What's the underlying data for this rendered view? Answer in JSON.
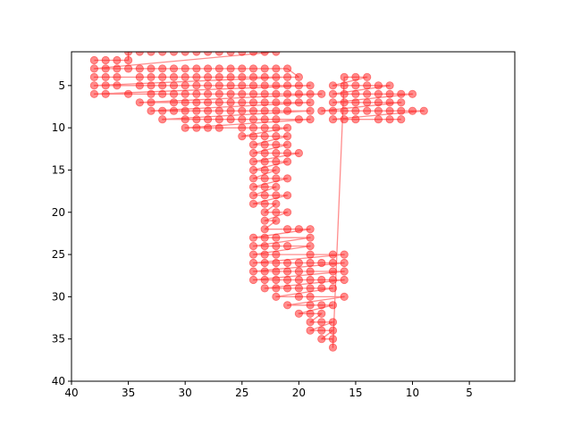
{
  "chart_data": {
    "type": "scatter",
    "title": "",
    "xlabel": "",
    "ylabel": "",
    "xlim": [
      40,
      1
    ],
    "ylim": [
      40,
      1
    ],
    "x_inverted": true,
    "y_inverted": true,
    "x_ticks": [
      40,
      35,
      30,
      25,
      20,
      15,
      10,
      5
    ],
    "x_tick_labels": [
      "40",
      "35",
      "30",
      "25",
      "20",
      "15",
      "10",
      "5"
    ],
    "y_ticks": [
      5,
      10,
      15,
      20,
      25,
      30,
      35,
      40
    ],
    "y_tick_labels": [
      "5",
      "10",
      "15",
      "20",
      "25",
      "30",
      "35",
      "40"
    ],
    "grid": false,
    "series": [
      {
        "color": "#ff0000",
        "marker": "o",
        "alpha": 0.45,
        "connected": true,
        "points": [
          [
            38,
            2
          ],
          [
            37,
            2
          ],
          [
            36,
            2
          ],
          [
            35,
            2
          ],
          [
            35,
            1
          ],
          [
            34,
            1
          ],
          [
            33,
            1
          ],
          [
            32,
            1
          ],
          [
            31,
            1
          ],
          [
            30,
            1
          ],
          [
            29,
            1
          ],
          [
            28,
            1
          ],
          [
            27,
            1
          ],
          [
            26,
            1
          ],
          [
            25,
            1
          ],
          [
            24,
            1
          ],
          [
            23,
            1
          ],
          [
            22,
            1
          ],
          [
            38,
            3
          ],
          [
            37,
            3
          ],
          [
            36,
            3
          ],
          [
            35,
            3
          ],
          [
            34,
            3
          ],
          [
            33,
            3
          ],
          [
            32,
            3
          ],
          [
            31,
            3
          ],
          [
            30,
            3
          ],
          [
            29,
            3
          ],
          [
            28,
            3
          ],
          [
            27,
            3
          ],
          [
            26,
            3
          ],
          [
            25,
            3
          ],
          [
            24,
            3
          ],
          [
            23,
            3
          ],
          [
            22,
            3
          ],
          [
            21,
            3
          ],
          [
            20,
            4
          ],
          [
            38,
            4
          ],
          [
            37,
            4
          ],
          [
            36,
            4
          ],
          [
            34,
            4
          ],
          [
            33,
            4
          ],
          [
            32,
            4
          ],
          [
            31,
            4
          ],
          [
            30,
            4
          ],
          [
            29,
            4
          ],
          [
            28,
            4
          ],
          [
            27,
            4
          ],
          [
            26,
            4
          ],
          [
            25,
            4
          ],
          [
            24,
            4
          ],
          [
            23,
            4
          ],
          [
            22,
            4
          ],
          [
            21,
            4
          ],
          [
            38,
            5
          ],
          [
            37,
            5
          ],
          [
            36,
            5
          ],
          [
            34,
            5
          ],
          [
            33,
            5
          ],
          [
            32,
            5
          ],
          [
            31,
            5
          ],
          [
            30,
            5
          ],
          [
            29,
            5
          ],
          [
            28,
            5
          ],
          [
            27,
            5
          ],
          [
            26,
            5
          ],
          [
            25,
            5
          ],
          [
            24,
            5
          ],
          [
            23,
            5
          ],
          [
            22,
            5
          ],
          [
            21,
            5
          ],
          [
            20,
            5
          ],
          [
            19,
            5
          ],
          [
            38,
            6
          ],
          [
            37,
            6
          ],
          [
            35,
            6
          ],
          [
            33,
            6
          ],
          [
            32,
            6
          ],
          [
            31,
            6
          ],
          [
            30,
            6
          ],
          [
            29,
            6
          ],
          [
            28,
            6
          ],
          [
            27,
            6
          ],
          [
            26,
            6
          ],
          [
            25,
            6
          ],
          [
            24,
            6
          ],
          [
            23,
            6
          ],
          [
            22,
            6
          ],
          [
            21,
            6
          ],
          [
            20,
            6
          ],
          [
            19,
            6
          ],
          [
            18,
            6
          ],
          [
            34,
            7
          ],
          [
            33,
            7
          ],
          [
            31,
            7
          ],
          [
            30,
            7
          ],
          [
            29,
            7
          ],
          [
            28,
            7
          ],
          [
            27,
            7
          ],
          [
            26,
            7
          ],
          [
            25,
            7
          ],
          [
            24,
            7
          ],
          [
            23,
            7
          ],
          [
            22,
            7
          ],
          [
            21,
            7
          ],
          [
            20,
            7
          ],
          [
            19,
            7
          ],
          [
            33,
            8
          ],
          [
            32,
            8
          ],
          [
            31,
            8
          ],
          [
            30,
            8
          ],
          [
            29,
            8
          ],
          [
            28,
            8
          ],
          [
            27,
            8
          ],
          [
            26,
            8
          ],
          [
            25,
            8
          ],
          [
            24,
            8
          ],
          [
            23,
            8
          ],
          [
            22,
            8
          ],
          [
            21,
            8
          ],
          [
            19,
            8
          ],
          [
            32,
            9
          ],
          [
            30,
            9
          ],
          [
            29,
            9
          ],
          [
            28,
            9
          ],
          [
            27,
            9
          ],
          [
            26,
            9
          ],
          [
            25,
            9
          ],
          [
            24,
            9
          ],
          [
            23,
            9
          ],
          [
            22,
            9
          ],
          [
            20,
            9
          ],
          [
            19,
            9
          ],
          [
            30,
            10
          ],
          [
            29,
            10
          ],
          [
            28,
            10
          ],
          [
            27,
            10
          ],
          [
            25,
            10
          ],
          [
            24,
            10
          ],
          [
            23,
            10
          ],
          [
            22,
            10
          ],
          [
            21,
            10
          ],
          [
            25,
            11
          ],
          [
            24,
            11
          ],
          [
            23,
            11
          ],
          [
            22,
            11
          ],
          [
            21,
            11
          ],
          [
            24,
            12
          ],
          [
            23,
            12
          ],
          [
            22,
            12
          ],
          [
            21,
            12
          ],
          [
            24,
            13
          ],
          [
            23,
            13
          ],
          [
            22,
            13
          ],
          [
            21,
            13
          ],
          [
            20,
            13
          ],
          [
            24,
            14
          ],
          [
            23,
            14
          ],
          [
            22,
            14
          ],
          [
            21,
            14
          ],
          [
            24,
            15
          ],
          [
            23,
            15
          ],
          [
            22,
            15
          ],
          [
            24,
            16
          ],
          [
            23,
            16
          ],
          [
            22,
            16
          ],
          [
            21,
            16
          ],
          [
            24,
            17
          ],
          [
            23,
            17
          ],
          [
            22,
            17
          ],
          [
            24,
            18
          ],
          [
            23,
            18
          ],
          [
            22,
            18
          ],
          [
            21,
            18
          ],
          [
            24,
            19
          ],
          [
            23,
            19
          ],
          [
            22,
            19
          ],
          [
            23,
            20
          ],
          [
            22,
            20
          ],
          [
            21,
            20
          ],
          [
            23,
            21
          ],
          [
            22,
            21
          ],
          [
            23,
            22
          ],
          [
            21,
            22
          ],
          [
            20,
            22
          ],
          [
            19,
            22
          ],
          [
            24,
            23
          ],
          [
            23,
            23
          ],
          [
            22,
            23
          ],
          [
            19,
            23
          ],
          [
            24,
            24
          ],
          [
            23,
            24
          ],
          [
            22,
            24
          ],
          [
            21,
            24
          ],
          [
            19,
            24
          ],
          [
            24,
            25
          ],
          [
            23,
            25
          ],
          [
            22,
            25
          ],
          [
            19,
            25
          ],
          [
            17,
            25
          ],
          [
            16,
            25
          ],
          [
            24,
            26
          ],
          [
            23,
            26
          ],
          [
            22,
            26
          ],
          [
            21,
            26
          ],
          [
            20,
            26
          ],
          [
            19,
            26
          ],
          [
            18,
            26
          ],
          [
            17,
            26
          ],
          [
            16,
            26
          ],
          [
            24,
            27
          ],
          [
            23,
            27
          ],
          [
            22,
            27
          ],
          [
            21,
            27
          ],
          [
            20,
            27
          ],
          [
            19,
            27
          ],
          [
            17,
            27
          ],
          [
            16,
            27
          ],
          [
            24,
            28
          ],
          [
            23,
            28
          ],
          [
            22,
            28
          ],
          [
            21,
            28
          ],
          [
            20,
            28
          ],
          [
            19,
            28
          ],
          [
            18,
            28
          ],
          [
            17,
            28
          ],
          [
            16,
            28
          ],
          [
            23,
            29
          ],
          [
            22,
            29
          ],
          [
            21,
            29
          ],
          [
            20,
            29
          ],
          [
            19,
            29
          ],
          [
            18,
            29
          ],
          [
            17,
            29
          ],
          [
            22,
            30
          ],
          [
            20,
            30
          ],
          [
            19,
            30
          ],
          [
            16,
            30
          ],
          [
            21,
            31
          ],
          [
            19,
            31
          ],
          [
            18,
            31
          ],
          [
            17,
            31
          ],
          [
            20,
            32
          ],
          [
            19,
            32
          ],
          [
            18,
            32
          ],
          [
            19,
            33
          ],
          [
            18,
            33
          ],
          [
            17,
            33
          ],
          [
            19,
            34
          ],
          [
            18,
            34
          ],
          [
            17,
            34
          ],
          [
            18,
            35
          ],
          [
            17,
            35
          ],
          [
            17,
            36
          ],
          [
            16,
            4
          ],
          [
            15,
            4
          ],
          [
            14,
            4
          ],
          [
            17,
            5
          ],
          [
            16,
            5
          ],
          [
            15,
            5
          ],
          [
            14,
            5
          ],
          [
            13,
            5
          ],
          [
            12,
            5
          ],
          [
            17,
            6
          ],
          [
            16,
            6
          ],
          [
            15,
            6
          ],
          [
            14,
            6
          ],
          [
            13,
            6
          ],
          [
            12,
            6
          ],
          [
            11,
            6
          ],
          [
            10,
            6
          ],
          [
            17,
            7
          ],
          [
            16,
            7
          ],
          [
            15,
            7
          ],
          [
            14,
            7
          ],
          [
            13,
            7
          ],
          [
            12,
            7
          ],
          [
            11,
            7
          ],
          [
            18,
            8
          ],
          [
            17,
            8
          ],
          [
            16,
            8
          ],
          [
            15,
            8
          ],
          [
            14,
            8
          ],
          [
            13,
            8
          ],
          [
            12,
            8
          ],
          [
            11,
            8
          ],
          [
            10,
            8
          ],
          [
            9,
            8
          ],
          [
            17,
            9
          ],
          [
            16,
            9
          ],
          [
            15,
            9
          ],
          [
            13,
            9
          ],
          [
            12,
            9
          ],
          [
            11,
            9
          ]
        ]
      }
    ]
  }
}
